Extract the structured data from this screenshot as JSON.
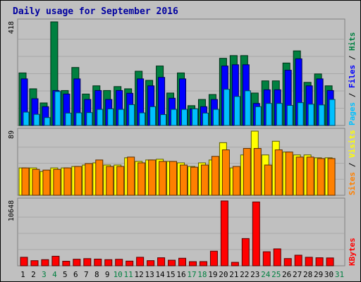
{
  "chart_data": [
    {
      "type": "bar",
      "title": "Daily usage for September 2016",
      "categories": [
        "1",
        "2",
        "3",
        "4",
        "5",
        "6",
        "7",
        "8",
        "9",
        "10",
        "11",
        "12",
        "13",
        "14",
        "15",
        "16",
        "17",
        "18",
        "19",
        "20",
        "21",
        "22",
        "23",
        "24",
        "25",
        "26",
        "27",
        "28",
        "29",
        "30",
        "31"
      ],
      "weekend_days": [
        "3",
        "4",
        "10",
        "11",
        "17",
        "18",
        "24",
        "25",
        "31"
      ],
      "panels": [
        {
          "id": "hits-files-pages",
          "ymax_label": "418",
          "ylim": [
            0,
            418
          ],
          "legend": [
            "Pages",
            "Files",
            "Hits"
          ],
          "series": [
            {
              "name": "Hits",
              "color": "#008040",
              "values": [
                212,
                148,
                91,
                418,
                141,
                234,
                127,
                160,
                141,
                157,
                148,
                219,
                182,
                240,
                131,
                212,
                80,
                105,
                125,
                271,
                282,
                282,
                131,
                180,
                180,
                252,
                301,
                174,
                208,
                160,
                null
              ]
            },
            {
              "name": "Files",
              "color": "#0000ff",
              "values": [
                188,
                108,
                76,
                141,
                127,
                188,
                105,
                141,
                105,
                141,
                130,
                188,
                160,
                194,
                110,
                188,
                67,
                76,
                105,
                240,
                245,
                245,
                89,
                144,
                144,
                223,
                269,
                160,
                188,
                141,
                null
              ]
            },
            {
              "name": "Pages",
              "color": "#00c0ff",
              "values": [
                54,
                45,
                32,
                137,
                50,
                51,
                52,
                65,
                67,
                65,
                84,
                51,
                76,
                44,
                65,
                65,
                67,
                50,
                65,
                146,
                117,
                140,
                76,
                89,
                89,
                81,
                92,
                86,
                83,
                105,
                null
              ]
            }
          ]
        },
        {
          "id": "visits-sites",
          "ymax_label": "89",
          "ylim": [
            0,
            89
          ],
          "legend": [
            "Sites",
            "Visits"
          ],
          "series": [
            {
              "name": "Visits",
              "color": "#ffff00",
              "values": [
                38,
                38,
                33,
                38,
                38,
                40,
                42,
                45,
                42,
                42,
                52,
                47,
                49,
                50,
                47,
                45,
                40,
                45,
                49,
                73,
                38,
                56,
                89,
                56,
                75,
                60,
                56,
                56,
                52,
                52,
                null
              ]
            },
            {
              "name": "Sites",
              "color": "#ff8000",
              "values": [
                38,
                36,
                35,
                36,
                38,
                40,
                44,
                49,
                40,
                40,
                53,
                45,
                49,
                47,
                47,
                42,
                39,
                42,
                54,
                63,
                40,
                65,
                65,
                42,
                63,
                60,
                53,
                53,
                51,
                51,
                null
              ]
            }
          ]
        },
        {
          "id": "kbytes",
          "ymax_label": "10648",
          "ylim": [
            0,
            10648
          ],
          "legend": [
            "KBytes"
          ],
          "series": [
            {
              "name": "KBytes",
              "color": "#ff0000",
              "values": [
                1400,
                842,
                1010,
                1570,
                750,
                1080,
                1180,
                1100,
                1010,
                1070,
                770,
                1400,
                850,
                1320,
                920,
                1240,
                680,
                690,
                2400,
                10648,
                570,
                4470,
                10480,
                2310,
                2780,
                1190,
                1740,
                1400,
                1320,
                1290,
                null
              ]
            }
          ]
        }
      ]
    }
  ]
}
